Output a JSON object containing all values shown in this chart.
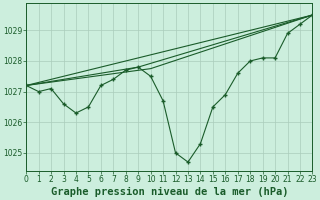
{
  "background_color": "#cceedd",
  "grid_color": "#aaccbb",
  "line_color": "#1a5c2a",
  "title": "Graphe pression niveau de la mer (hPa)",
  "xlim": [
    0,
    23
  ],
  "ylim": [
    1024.4,
    1029.9
  ],
  "yticks": [
    1025,
    1026,
    1027,
    1028,
    1029
  ],
  "xticks": [
    0,
    1,
    2,
    3,
    4,
    5,
    6,
    7,
    8,
    9,
    10,
    11,
    12,
    13,
    14,
    15,
    16,
    17,
    18,
    19,
    20,
    21,
    22,
    23
  ],
  "series1_x": [
    0,
    1,
    2,
    3,
    4,
    5,
    6,
    7,
    8,
    9,
    10,
    11,
    12,
    13,
    14,
    15,
    16,
    17,
    18,
    19,
    20,
    21,
    22,
    23
  ],
  "series1_y": [
    1027.2,
    1027.0,
    1027.1,
    1026.6,
    1026.3,
    1026.5,
    1027.2,
    1027.4,
    1027.7,
    1027.8,
    1027.5,
    1026.7,
    1025.0,
    1024.7,
    1025.3,
    1026.5,
    1026.9,
    1027.6,
    1028.0,
    1028.1,
    1028.1,
    1028.9,
    1029.2,
    1029.5
  ],
  "trend1_x": [
    0,
    23
  ],
  "trend1_y": [
    1027.2,
    1029.5
  ],
  "trend2_x": [
    0,
    10,
    23
  ],
  "trend2_y": [
    1027.2,
    1027.75,
    1029.5
  ],
  "trend3_x": [
    0,
    9,
    23
  ],
  "trend3_y": [
    1027.2,
    1027.8,
    1029.5
  ],
  "title_fontsize": 7.5,
  "tick_fontsize": 5.5
}
